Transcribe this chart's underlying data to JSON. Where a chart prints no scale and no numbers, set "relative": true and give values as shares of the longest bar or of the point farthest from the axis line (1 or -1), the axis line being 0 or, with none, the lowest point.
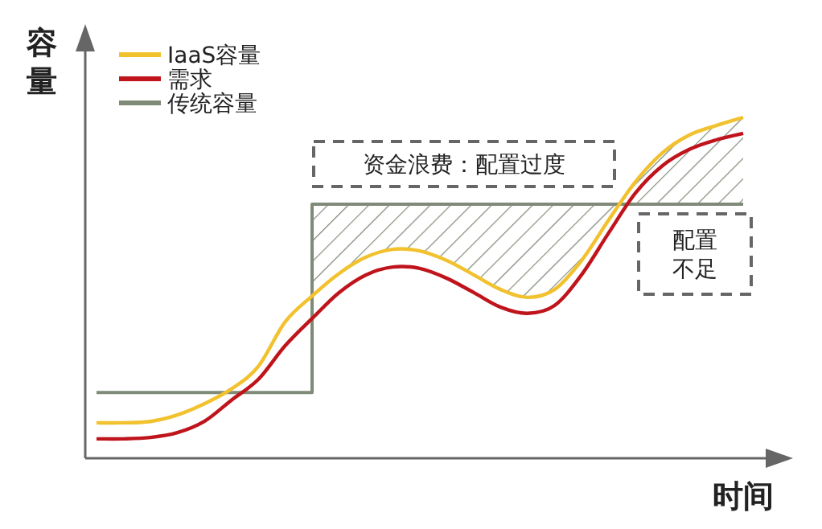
{
  "chart_data": {
    "type": "line",
    "relative": true,
    "xlabel": "时间",
    "ylabel": "容量",
    "legend": "top left",
    "marker": "none",
    "line_style": "solid",
    "categories": [
      null,
      null,
      null,
      null,
      null,
      null,
      null,
      null,
      null,
      null,
      null,
      null,
      null,
      null,
      null,
      null,
      null,
      null,
      null,
      null,
      null,
      null,
      null,
      null,
      null
    ],
    "series": [
      {
        "name": "IaaS容量",
        "color": "#f2c12e",
        "values": [
          0.104,
          0.104,
          0.108,
          0.127,
          0.16,
          0.203,
          0.269,
          0.4,
          0.476,
          0.542,
          0.59,
          0.613,
          0.608,
          0.58,
          0.538,
          0.495,
          0.472,
          0.495,
          0.58,
          0.698,
          0.811,
          0.896,
          0.948,
          0.976,
          1
        ]
      },
      {
        "name": "需求",
        "color": "#c0141c",
        "values": [
          0.057,
          0.057,
          0.061,
          0.075,
          0.108,
          0.17,
          0.231,
          0.33,
          0.41,
          0.486,
          0.538,
          0.561,
          0.557,
          0.528,
          0.486,
          0.443,
          0.425,
          0.448,
          0.538,
          0.66,
          0.778,
          0.858,
          0.906,
          0.934,
          0.953
        ]
      },
      {
        "name": "传统容量",
        "color": "#7f8a78",
        "type": "step",
        "values": [
          0.193,
          0.193,
          0.193,
          0.193,
          0.193,
          0.193,
          0.193,
          0.193,
          0.745,
          0.745,
          0.745,
          0.745,
          0.745,
          0.745,
          0.745,
          0.745,
          0.745,
          0.745,
          0.745,
          0.745,
          0.745,
          0.745,
          0.745,
          0.745,
          0.745
        ]
      }
    ],
    "annotations": [
      "资金浪费：配置过度",
      "配置不足"
    ]
  }
}
